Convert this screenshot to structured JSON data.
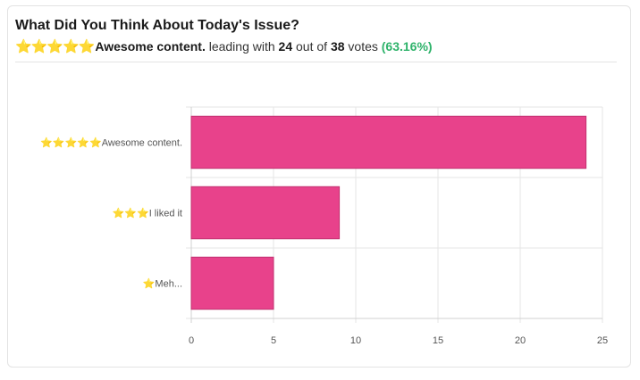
{
  "header": {
    "title": "What Did You Think About Today's Issue?",
    "leader_stars": "⭐⭐⭐⭐⭐",
    "leader_label": "Awesome content.",
    "text_leading_with": " leading with ",
    "leader_votes": "24",
    "text_out_of": " out of ",
    "total_votes": "38",
    "text_votes": " votes ",
    "leader_percent": "(63.16%)"
  },
  "colors": {
    "bar": "#e8428b",
    "percent": "#2fb36b",
    "grid": "#e6e6e6"
  },
  "chart_data": {
    "type": "bar",
    "orientation": "horizontal",
    "categories": [
      "⭐⭐⭐⭐⭐Awesome content.",
      "⭐⭐⭐I liked it",
      "⭐Meh..."
    ],
    "values": [
      24,
      9,
      5
    ],
    "xlim": [
      0,
      25
    ],
    "xticks": [
      0,
      5,
      10,
      15,
      20,
      25
    ],
    "grid": true,
    "legend": "none"
  }
}
